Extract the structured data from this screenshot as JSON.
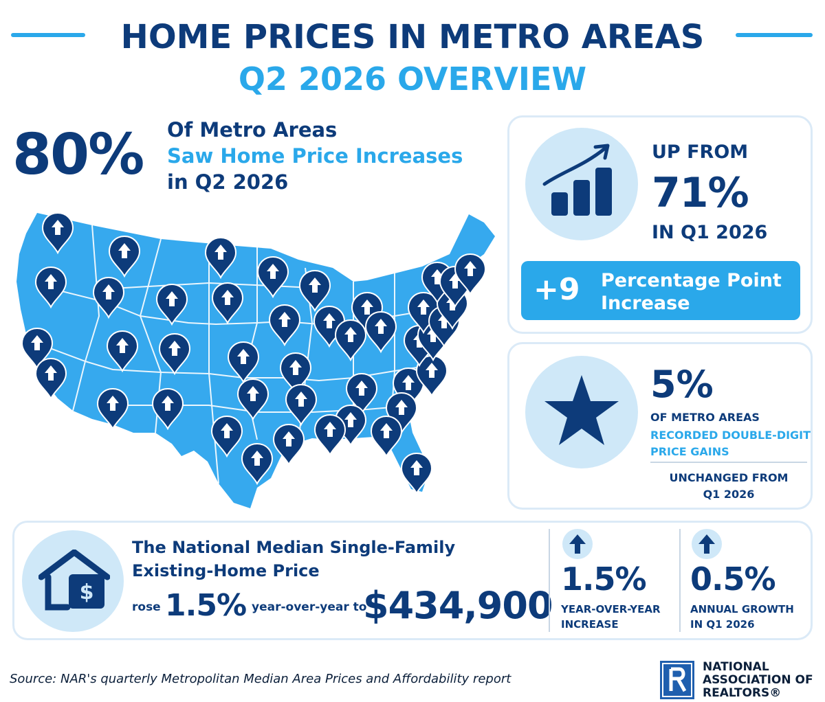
{
  "header": {
    "title": "HOME PRICES IN METRO AREAS",
    "subtitle": "Q2 2026 OVERVIEW"
  },
  "main_stat": {
    "value": "80%",
    "line1": "Of Metro Areas",
    "line2": "Saw Home Price Increases",
    "line3": "in Q2 2026"
  },
  "up_from_card": {
    "label_top": "UP FROM",
    "value": "71%",
    "label_bottom": "IN Q1 2026",
    "increase_value": "+9",
    "increase_line1": "Percentage Point",
    "increase_line2": "Increase",
    "icon": "bar-chart-growth-icon"
  },
  "double_digit_card": {
    "value": "5%",
    "line1": "OF METRO AREAS",
    "line2": "RECORDED DOUBLE-DIGIT",
    "line3": "PRICE GAINS",
    "unchanged_line1": "UNCHANGED FROM",
    "unchanged_line2": "Q1 2026",
    "icon": "star-icon"
  },
  "map": {
    "icon": "us-map-with-up-arrow-pins"
  },
  "national": {
    "title_line1": "The National Median Single-Family",
    "title_line2": "Existing-Home Price",
    "rose": "rose",
    "rose_value": "1.5%",
    "yoy_to": "year-over-year to",
    "price": "$434,900",
    "icon": "house-dollar-icon",
    "metrics": [
      {
        "value": "1.5%",
        "label1": "YEAR-OVER-YEAR",
        "label2": "INCREASE",
        "icon": "up-arrow-icon"
      },
      {
        "value": "0.5%",
        "label1": "ANNUAL GROWTH",
        "label2": "IN Q1 2026",
        "icon": "up-arrow-icon"
      }
    ]
  },
  "footer": {
    "source": "Source: NAR's quarterly Metropolitan Median Area Prices and Affordability report",
    "logo_line1": "NATIONAL",
    "logo_line2": "ASSOCIATION OF",
    "logo_line3": "REALTORS®"
  },
  "colors": {
    "navy": "#0d3b7a",
    "sky": "#2aa8ea",
    "light": "#cfe8f8",
    "border": "#dbeaf7"
  }
}
